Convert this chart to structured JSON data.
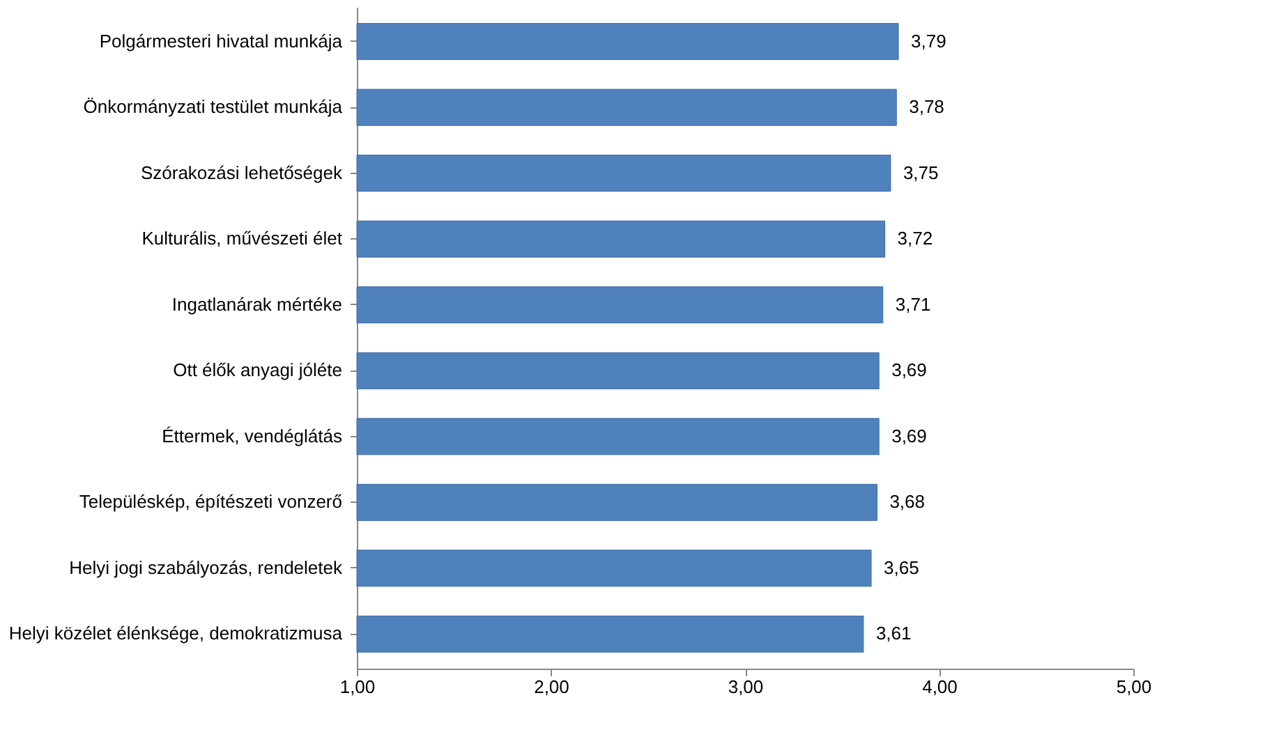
{
  "chart_data": {
    "type": "bar",
    "orientation": "horizontal",
    "categories": [
      "Polgármesteri hivatal munkája",
      "Önkormányzati testület munkája",
      "Szórakozási lehetőségek",
      "Kulturális, művészeti élet",
      "Ingatlanárak mértéke",
      "Ott élők anyagi jóléte",
      "Éttermek, vendéglátás",
      "Településkép, építészeti vonzerő",
      "Helyi jogi szabályozás,  rendeletek",
      "Helyi közélet élénksége, demokratizmusa"
    ],
    "values": [
      3.79,
      3.78,
      3.75,
      3.72,
      3.71,
      3.69,
      3.69,
      3.68,
      3.65,
      3.61
    ],
    "value_labels": [
      "3,79",
      "3,78",
      "3,75",
      "3,72",
      "3,71",
      "3,69",
      "3,69",
      "3,68",
      "3,65",
      "3,61"
    ],
    "color": "#4f81bd",
    "xlim": [
      1,
      5
    ],
    "xticks": [
      {
        "value": 1,
        "label": "1,00"
      },
      {
        "value": 2,
        "label": "2,00"
      },
      {
        "value": 3,
        "label": "3,00"
      },
      {
        "value": 4,
        "label": "4,00"
      },
      {
        "value": 5,
        "label": "5,00"
      }
    ],
    "grid": false
  }
}
